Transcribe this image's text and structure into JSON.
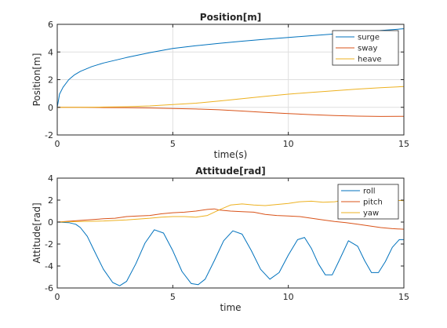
{
  "chart_data": [
    {
      "type": "line",
      "title": "Position[m]",
      "xlabel": "time(s)",
      "ylabel": "Position[m]",
      "xlim": [
        0,
        15
      ],
      "ylim": [
        -2,
        6
      ],
      "xticks": [
        "0",
        "5",
        "10",
        "15"
      ],
      "yticks": [
        "-2",
        "0",
        "2",
        "4",
        "6"
      ],
      "grid": true,
      "legend_position": "top-right",
      "series": [
        {
          "name": "surge",
          "color": "#0072bd",
          "x": [
            0,
            0.1,
            0.25,
            0.5,
            0.75,
            1,
            1.5,
            2,
            2.5,
            3,
            4,
            5,
            6,
            7,
            8,
            9,
            10,
            11,
            12,
            13,
            14,
            15
          ],
          "y": [
            0,
            0.95,
            1.45,
            2.0,
            2.35,
            2.6,
            2.95,
            3.2,
            3.4,
            3.6,
            3.95,
            4.25,
            4.45,
            4.62,
            4.78,
            4.92,
            5.05,
            5.18,
            5.3,
            5.42,
            5.55,
            5.68
          ]
        },
        {
          "name": "sway",
          "color": "#d95319",
          "x": [
            0,
            1,
            2,
            3,
            4,
            5,
            6,
            7,
            8,
            9,
            10,
            11,
            12,
            13,
            14,
            15
          ],
          "y": [
            0,
            0,
            -0.02,
            -0.03,
            -0.05,
            -0.08,
            -0.12,
            -0.18,
            -0.27,
            -0.37,
            -0.45,
            -0.53,
            -0.6,
            -0.64,
            -0.66,
            -0.65
          ]
        },
        {
          "name": "heave",
          "color": "#edb120",
          "x": [
            0,
            1,
            2,
            3,
            4,
            5,
            6,
            7,
            8,
            9,
            10,
            11,
            12,
            13,
            14,
            15
          ],
          "y": [
            0,
            0,
            0.02,
            0.04,
            0.1,
            0.2,
            0.3,
            0.45,
            0.62,
            0.8,
            0.95,
            1.08,
            1.2,
            1.32,
            1.42,
            1.5
          ]
        }
      ]
    },
    {
      "type": "line",
      "title": "Attitude[rad]",
      "xlabel": "time",
      "ylabel": "Attitude[rad]",
      "xlim": [
        0,
        15
      ],
      "ylim": [
        -6,
        4
      ],
      "xticks": [
        "0",
        "5",
        "10",
        "15"
      ],
      "yticks": [
        "-6",
        "-4",
        "-2",
        "0",
        "2",
        "4"
      ],
      "grid": false,
      "legend_position": "top-right",
      "series": [
        {
          "name": "roll",
          "color": "#0072bd",
          "x": [
            0,
            0.5,
            0.8,
            1.0,
            1.3,
            1.6,
            2.0,
            2.4,
            2.7,
            3.0,
            3.4,
            3.8,
            4.2,
            4.6,
            5.0,
            5.4,
            5.8,
            6.1,
            6.4,
            6.8,
            7.2,
            7.6,
            8.0,
            8.4,
            8.8,
            9.2,
            9.6,
            10.0,
            10.4,
            10.7,
            11.0,
            11.3,
            11.6,
            11.9,
            12.2,
            12.6,
            13.0,
            13.3,
            13.6,
            13.9,
            14.2,
            14.5,
            14.8,
            15.0
          ],
          "y": [
            0,
            -0.05,
            -0.2,
            -0.5,
            -1.3,
            -2.6,
            -4.3,
            -5.5,
            -5.8,
            -5.4,
            -3.8,
            -1.9,
            -0.7,
            -1.0,
            -2.6,
            -4.5,
            -5.6,
            -5.7,
            -5.2,
            -3.5,
            -1.7,
            -0.8,
            -1.1,
            -2.6,
            -4.3,
            -5.2,
            -4.6,
            -3.0,
            -1.6,
            -1.4,
            -2.4,
            -3.8,
            -4.8,
            -4.8,
            -3.5,
            -1.7,
            -2.2,
            -3.5,
            -4.6,
            -4.6,
            -3.6,
            -2.3,
            -1.6,
            -1.6
          ]
        },
        {
          "name": "pitch",
          "color": "#d95319",
          "x": [
            0,
            1,
            2,
            2.5,
            3,
            3.5,
            4,
            4.5,
            5,
            5.5,
            6,
            6.5,
            6.8,
            7,
            7.5,
            8,
            8.5,
            9,
            9.5,
            10,
            10.5,
            11,
            11.5,
            12,
            12.5,
            13,
            13.5,
            14,
            14.5,
            15
          ],
          "y": [
            0,
            0.15,
            0.3,
            0.35,
            0.5,
            0.55,
            0.6,
            0.75,
            0.85,
            0.9,
            1.0,
            1.15,
            1.2,
            1.1,
            1.0,
            0.95,
            0.9,
            0.7,
            0.6,
            0.55,
            0.5,
            0.35,
            0.2,
            0.05,
            -0.05,
            -0.2,
            -0.35,
            -0.5,
            -0.6,
            -0.65
          ]
        },
        {
          "name": "yaw",
          "color": "#edb120",
          "x": [
            0,
            1,
            2,
            3,
            4,
            4.5,
            5,
            5.5,
            6,
            6.5,
            7,
            7.5,
            8,
            8.5,
            9,
            9.5,
            10,
            10.5,
            11,
            11.5,
            12,
            12.5,
            13,
            13.5,
            14,
            14.5,
            15
          ],
          "y": [
            0,
            0.05,
            0.1,
            0.2,
            0.35,
            0.45,
            0.5,
            0.5,
            0.45,
            0.6,
            1.1,
            1.55,
            1.65,
            1.55,
            1.5,
            1.6,
            1.7,
            1.85,
            1.9,
            1.8,
            1.85,
            2.0,
            1.9,
            1.85,
            1.95,
            2.0,
            1.95
          ]
        }
      ]
    }
  ]
}
